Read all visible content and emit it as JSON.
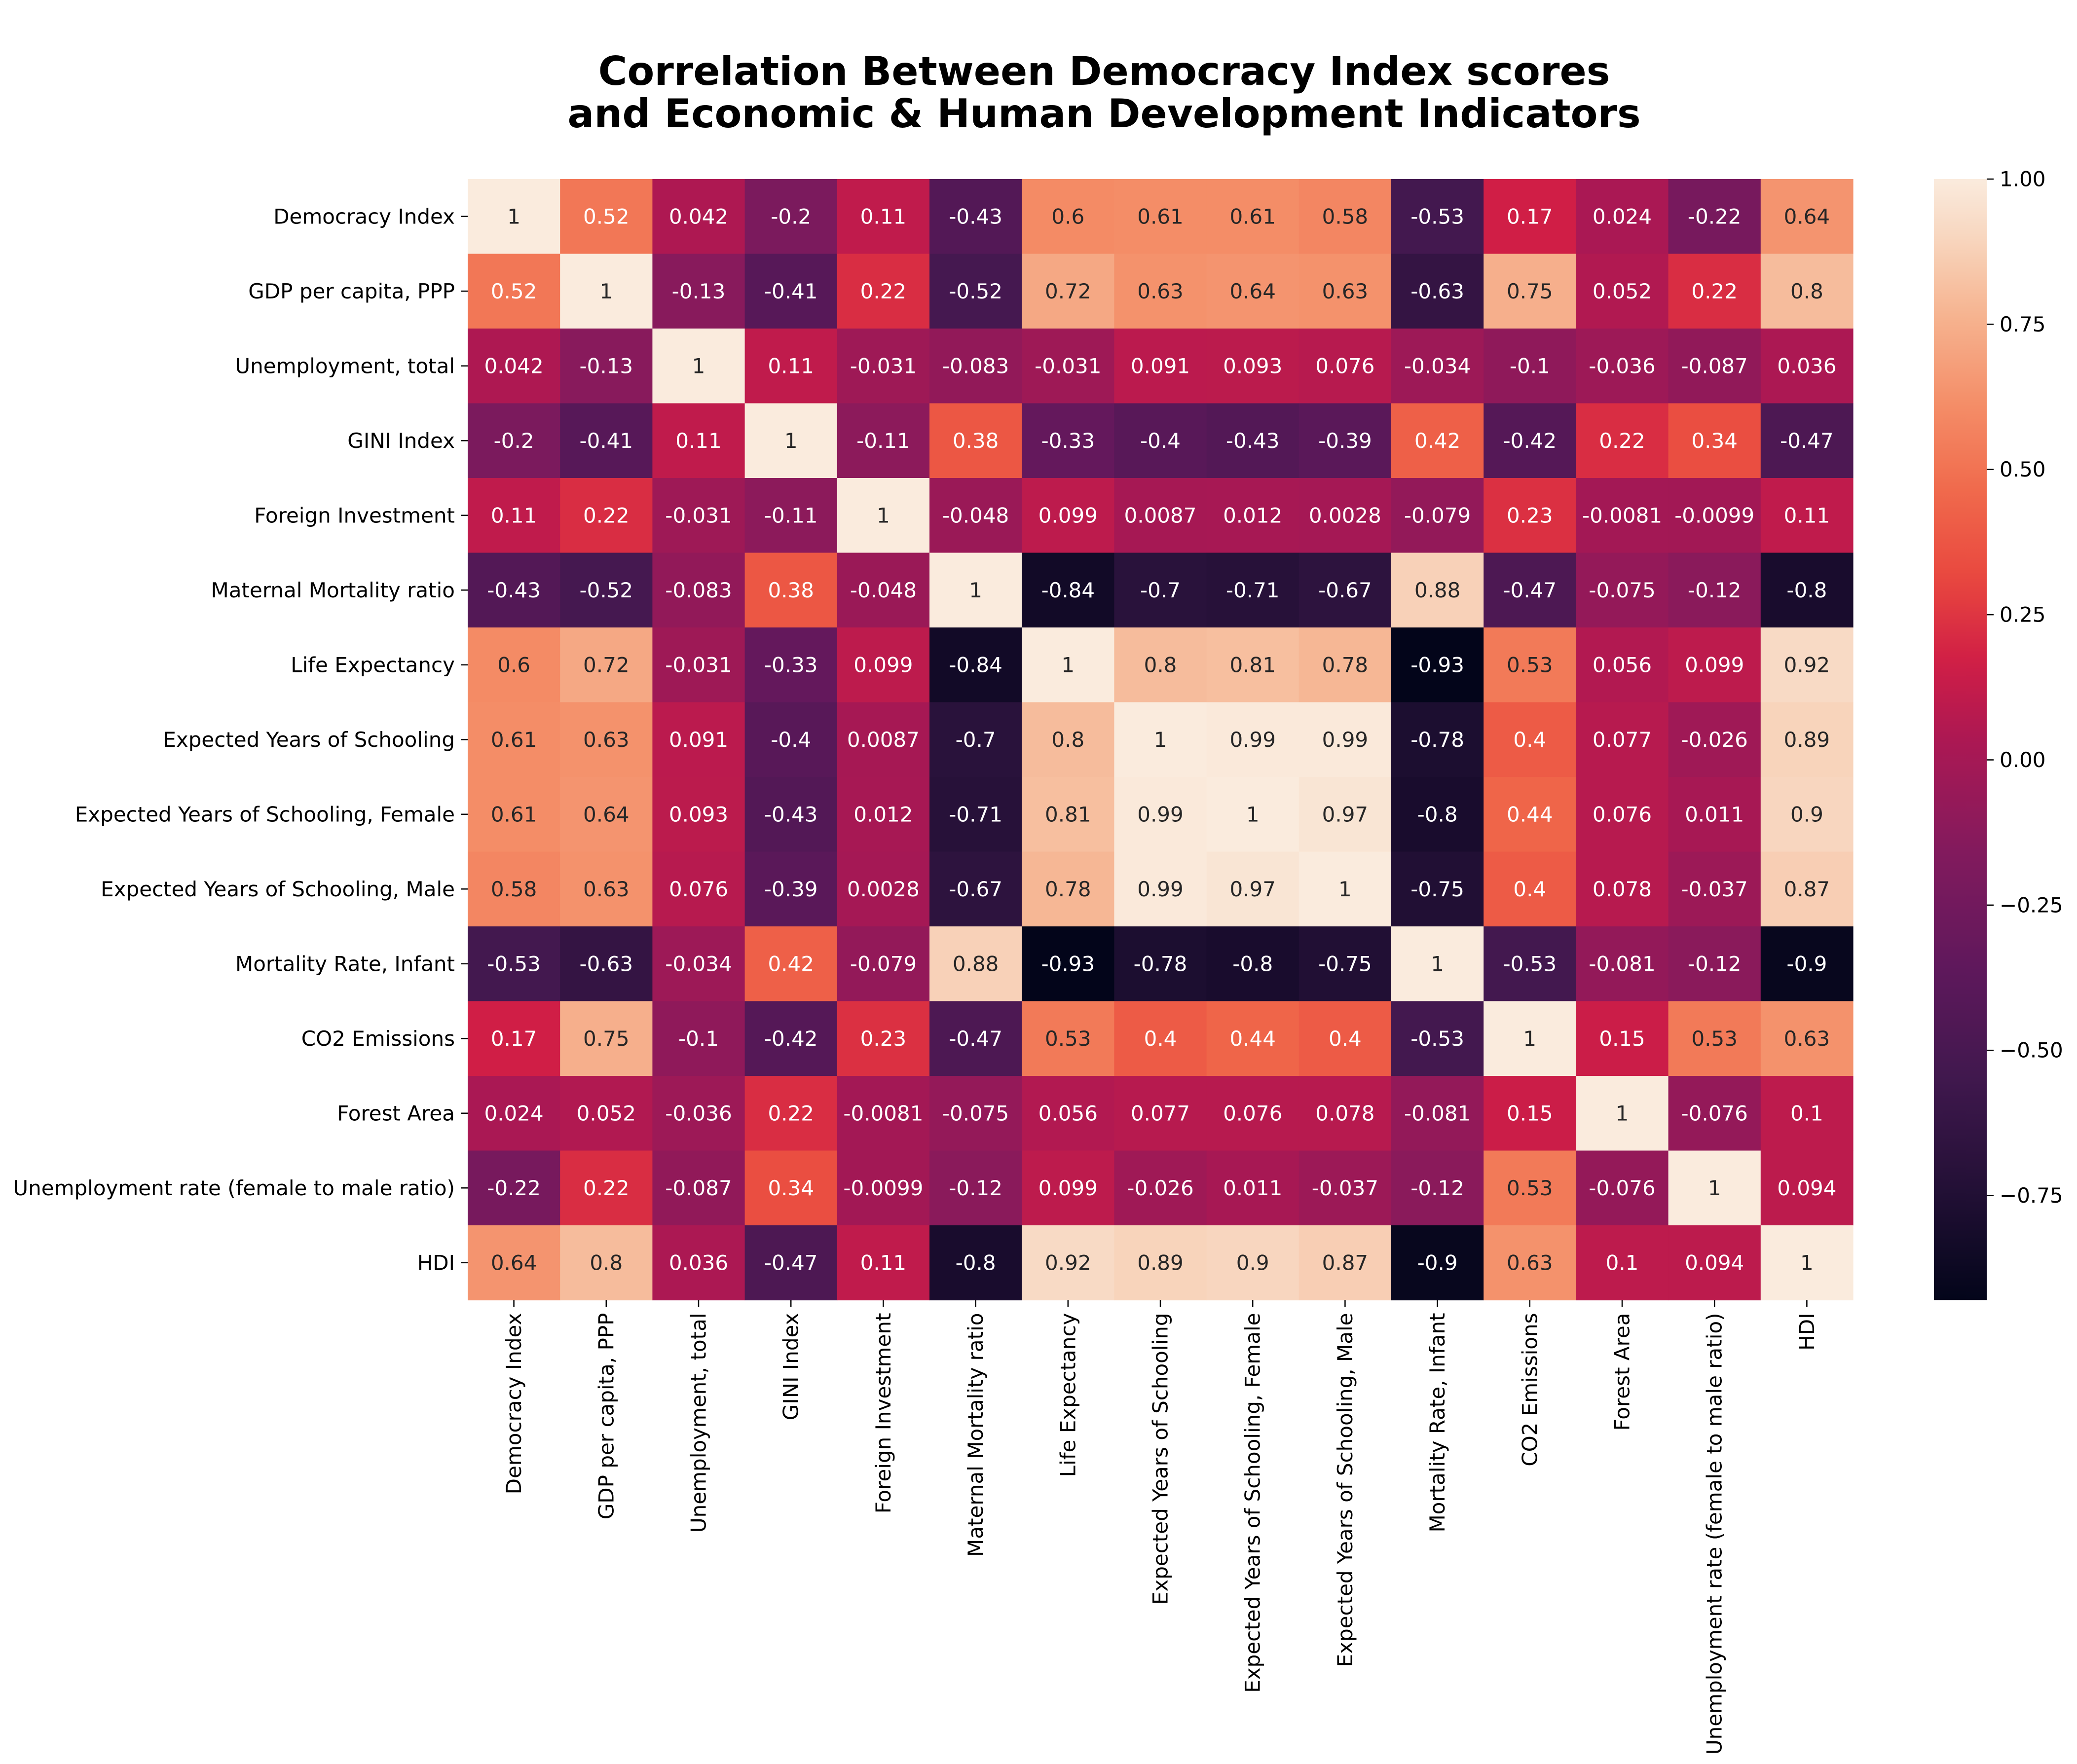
{
  "chart_data": {
    "type": "heatmap",
    "title_lines": [
      "Correlation Between Democracy Index scores",
      "and Economic & Human Development Indicators"
    ],
    "xlabel": "",
    "ylabel": "",
    "row_labels": [
      "Democracy Index",
      "GDP per capita, PPP",
      "Unemployment, total",
      "GINI Index",
      "Foreign Investment",
      "Maternal Mortality ratio",
      "Life Expectancy",
      "Expected Years of Schooling",
      "Expected Years of Schooling, Female",
      "Expected Years of Schooling, Male",
      "Mortality Rate, Infant",
      "CO2 Emissions",
      "Forest Area",
      "Unemployment rate (female to male ratio)",
      "HDI"
    ],
    "column_labels": [
      "Democracy Index",
      "GDP per capita, PPP",
      "Unemployment, total",
      "GINI Index",
      "Foreign Investment",
      "Maternal Mortality ratio",
      "Life Expectancy",
      "Expected Years of Schooling",
      "Expected Years of Schooling, Female",
      "Expected Years of Schooling, Male",
      "Mortality Rate, Infant",
      "CO2 Emissions",
      "Forest Area",
      "Unemployment rate (female to male ratio)",
      "HDI"
    ],
    "values": [
      [
        1,
        0.52,
        0.042,
        -0.2,
        0.11,
        -0.43,
        0.6,
        0.61,
        0.61,
        0.58,
        -0.53,
        0.17,
        0.024,
        -0.22,
        0.64
      ],
      [
        0.52,
        1,
        -0.13,
        -0.41,
        0.22,
        -0.52,
        0.72,
        0.63,
        0.64,
        0.63,
        -0.63,
        0.75,
        0.052,
        0.22,
        0.8
      ],
      [
        0.042,
        -0.13,
        1,
        0.11,
        -0.031,
        -0.083,
        -0.031,
        0.091,
        0.093,
        0.076,
        -0.034,
        -0.1,
        -0.036,
        -0.087,
        0.036
      ],
      [
        -0.2,
        -0.41,
        0.11,
        1,
        -0.11,
        0.38,
        -0.33,
        -0.4,
        -0.43,
        -0.39,
        0.42,
        -0.42,
        0.22,
        0.34,
        -0.47
      ],
      [
        0.11,
        0.22,
        -0.031,
        -0.11,
        1,
        -0.048,
        0.099,
        0.0087,
        0.012,
        0.0028,
        -0.079,
        0.23,
        -0.0081,
        -0.0099,
        0.11
      ],
      [
        -0.43,
        -0.52,
        -0.083,
        0.38,
        -0.048,
        1,
        -0.84,
        -0.7,
        -0.71,
        -0.67,
        0.88,
        -0.47,
        -0.075,
        -0.12,
        -0.8
      ],
      [
        0.6,
        0.72,
        -0.031,
        -0.33,
        0.099,
        -0.84,
        1,
        0.8,
        0.81,
        0.78,
        -0.93,
        0.53,
        0.056,
        0.099,
        0.92
      ],
      [
        0.61,
        0.63,
        0.091,
        -0.4,
        0.0087,
        -0.7,
        0.8,
        1,
        0.99,
        0.99,
        -0.78,
        0.4,
        0.077,
        -0.026,
        0.89
      ],
      [
        0.61,
        0.64,
        0.093,
        -0.43,
        0.012,
        -0.71,
        0.81,
        0.99,
        1,
        0.97,
        -0.8,
        0.44,
        0.076,
        0.011,
        0.9
      ],
      [
        0.58,
        0.63,
        0.076,
        -0.39,
        0.0028,
        -0.67,
        0.78,
        0.99,
        0.97,
        1,
        -0.75,
        0.4,
        0.078,
        -0.037,
        0.87
      ],
      [
        -0.53,
        -0.63,
        -0.034,
        0.42,
        -0.079,
        0.88,
        -0.93,
        -0.78,
        -0.8,
        -0.75,
        1,
        -0.53,
        -0.081,
        -0.12,
        -0.9
      ],
      [
        0.17,
        0.75,
        -0.1,
        -0.42,
        0.23,
        -0.47,
        0.53,
        0.4,
        0.44,
        0.4,
        -0.53,
        1,
        0.15,
        0.53,
        0.63
      ],
      [
        0.024,
        0.052,
        -0.036,
        0.22,
        -0.0081,
        -0.075,
        0.056,
        0.077,
        0.076,
        0.078,
        -0.081,
        0.15,
        1,
        -0.076,
        0.1
      ],
      [
        -0.22,
        0.22,
        -0.087,
        0.34,
        -0.0099,
        -0.12,
        0.099,
        -0.026,
        0.011,
        -0.037,
        -0.12,
        0.53,
        -0.076,
        1,
        0.094
      ],
      [
        0.64,
        0.8,
        0.036,
        -0.47,
        0.11,
        -0.8,
        0.92,
        0.89,
        0.9,
        0.87,
        -0.9,
        0.63,
        0.1,
        0.094,
        1
      ]
    ],
    "value_range": [
      -0.93,
      1.0
    ],
    "colormap": "rocket",
    "colorbar_ticks": [
      1.0,
      0.75,
      0.5,
      0.25,
      0.0,
      -0.25,
      -0.5,
      -0.75
    ],
    "colorbar_tick_labels": [
      "1.00",
      "0.75",
      "0.50",
      "0.25",
      "0.00",
      "−0.25",
      "−0.50",
      "−0.75"
    ],
    "annotated": true,
    "grid": false
  }
}
